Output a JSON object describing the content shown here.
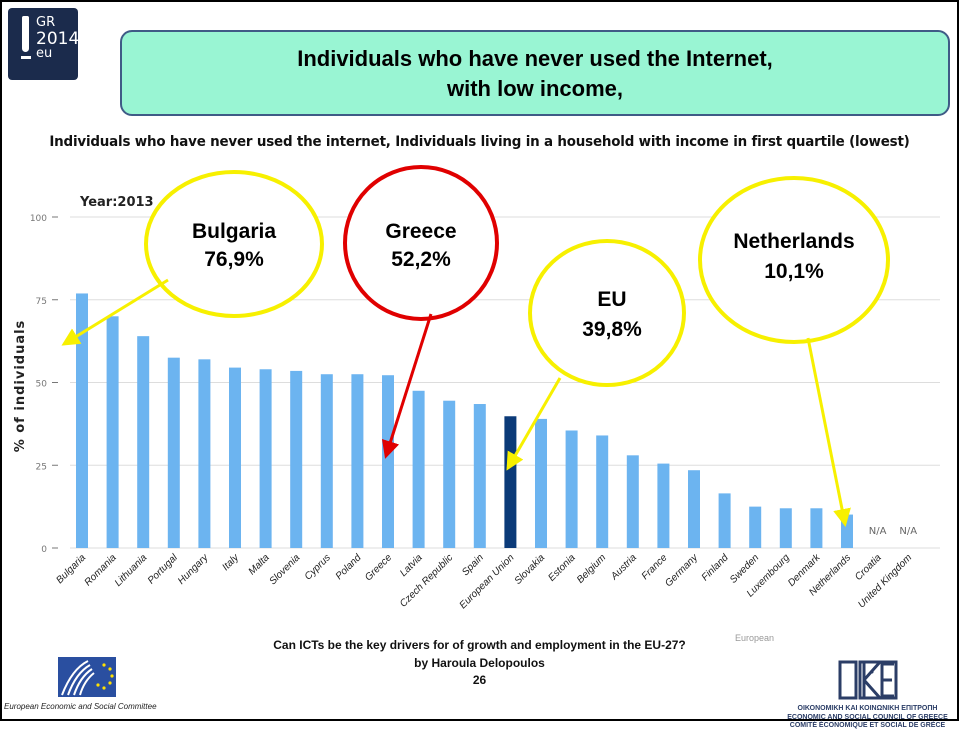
{
  "logo": {
    "line1": "GR",
    "line2": "2014",
    "line3": "eu"
  },
  "header": {
    "title_line1": "Individuals who have never used the Internet,",
    "title_line2": "with low income,"
  },
  "subtitle": "Individuals who have never used the internet, Individuals living in a household with income in first quartile (lowest)",
  "callouts": {
    "bulgaria": {
      "name": "Bulgaria",
      "value": "76,9%"
    },
    "greece": {
      "name": "Greece",
      "value": "52,2%"
    },
    "eu": {
      "name": "EU",
      "value": "39,8%"
    },
    "netherlands": {
      "name": "Netherlands",
      "value": "10,1%"
    }
  },
  "chart_data": {
    "type": "bar",
    "year_label": "Year:2013",
    "ylabel": "% of individuals",
    "ylim": [
      0,
      100
    ],
    "yticks": [
      0,
      25,
      50,
      75,
      100
    ],
    "categories": [
      "Bulgaria",
      "Romania",
      "Lithuania",
      "Portugal",
      "Hungary",
      "Italy",
      "Malta",
      "Slovenia",
      "Cyprus",
      "Poland",
      "Greece",
      "Latvia",
      "Czech Republic",
      "Spain",
      "European Union",
      "Slovakia",
      "Estonia",
      "Belgium",
      "Austria",
      "France",
      "Germany",
      "Finland",
      "Sweden",
      "Luxembourg",
      "Denmark",
      "Netherlands",
      "Croatia",
      "United Kingdom"
    ],
    "values": [
      76.9,
      70,
      64,
      57.5,
      57,
      54.5,
      54,
      53.5,
      52.5,
      52.5,
      52.2,
      47.5,
      44.5,
      43.5,
      39.8,
      39,
      35.5,
      34,
      28,
      25.5,
      23.5,
      16.5,
      12.5,
      12,
      12,
      10.1,
      null,
      null
    ],
    "na_label": "N/A",
    "highlight": "European Union",
    "colors": {
      "bar": "#6CB4F0",
      "highlight": "#0B3A78",
      "grid": "#dddddd",
      "axis_text": "#777777"
    },
    "watermark": "European"
  },
  "footer": {
    "line1": "Can ICTs be the key drivers for of growth and employment in the EU-27?",
    "line2": "by Haroula Delopoulos",
    "page": "26",
    "eesc": "European Economic and Social Committee",
    "kesc_line1": "ΟΙΚΟΝΟΜΙΚΗ ΚΑΙ ΚΟΙΝΩΝΙΚΗ ΕΠΙΤΡΟΠΗ",
    "kesc_line2": "ECONOMIC AND SOCIAL COUNCIL OF GREECE",
    "kesc_line3": "COMITÉ ÉCONOMIQUE ET SOCIAL DE GRÈCE"
  }
}
